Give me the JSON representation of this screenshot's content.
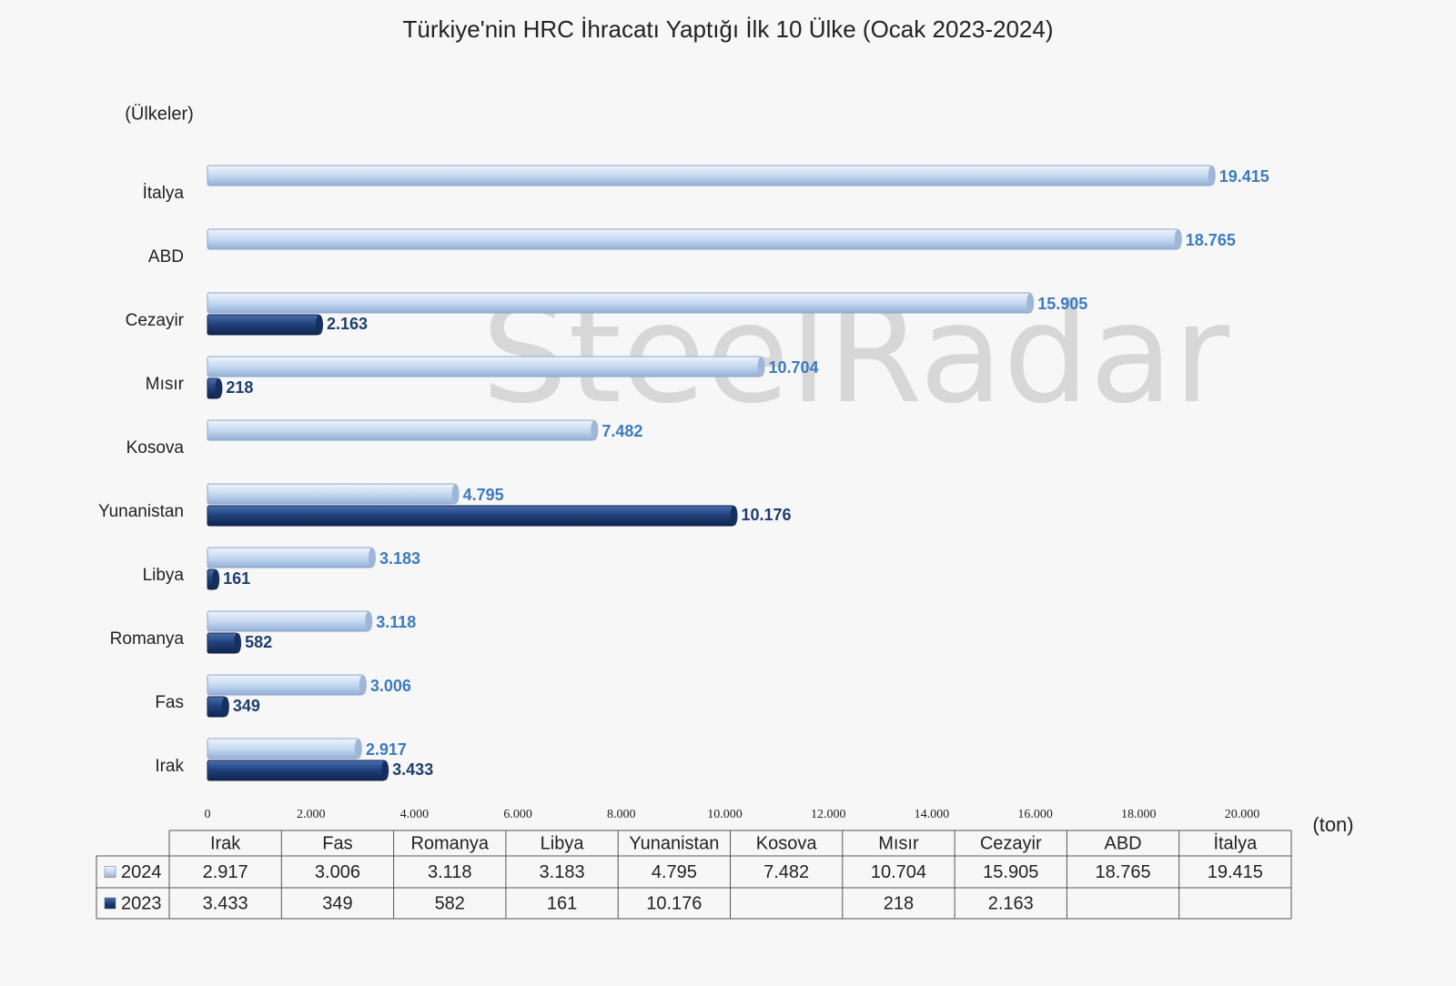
{
  "chart_data": {
    "type": "bar",
    "orientation": "horizontal",
    "title": "Türkiye'nin HRC İhracatı Yaptığı İlk 10 Ülke (Ocak 2023-2024)",
    "y_label": "(Ülkeler)",
    "x_label": "(ton)",
    "watermark": "SteelRadar",
    "categories": [
      "Irak",
      "Fas",
      "Romanya",
      "Libya",
      "Yunanistan",
      "Kosova",
      "Mısır",
      "Cezayir",
      "ABD",
      "İtalya"
    ],
    "series": [
      {
        "name": "2024",
        "color": "#c6d9f1",
        "label_color": "#3b7bbf",
        "values": [
          2917,
          3006,
          3118,
          3183,
          4795,
          7482,
          10704,
          15905,
          18765,
          19415
        ],
        "value_labels": [
          "2.917",
          "3.006",
          "3.118",
          "3.183",
          "4.795",
          "7.482",
          "10.704",
          "15.905",
          "18.765",
          "19.415"
        ]
      },
      {
        "name": "2023",
        "color": "#1f3f7a",
        "label_color": "#1f3d6e",
        "values": [
          3433,
          349,
          582,
          161,
          10176,
          null,
          218,
          2163,
          null,
          null
        ],
        "value_labels": [
          "3.433",
          "349",
          "582",
          "161",
          "10.176",
          null,
          "218",
          "2.163",
          null,
          null
        ]
      }
    ],
    "xlim": [
      0,
      20000
    ],
    "xticks": [
      0,
      {
        "value": 2000,
        "label": "2.000"
      },
      {
        "value": 4000,
        "label": "4.000"
      },
      {
        "value": 6000,
        "label": "6.000"
      },
      {
        "value": 8000,
        "label": "8.000"
      },
      {
        "value": 10000,
        "label": "10.000"
      },
      {
        "value": 12000,
        "label": "12.000"
      },
      {
        "value": 14000,
        "label": "14.000"
      },
      {
        "value": 16000,
        "label": "16.000"
      },
      {
        "value": 18000,
        "label": "18.000"
      },
      {
        "value": 20000,
        "label": "20.000"
      }
    ],
    "grid": false
  }
}
